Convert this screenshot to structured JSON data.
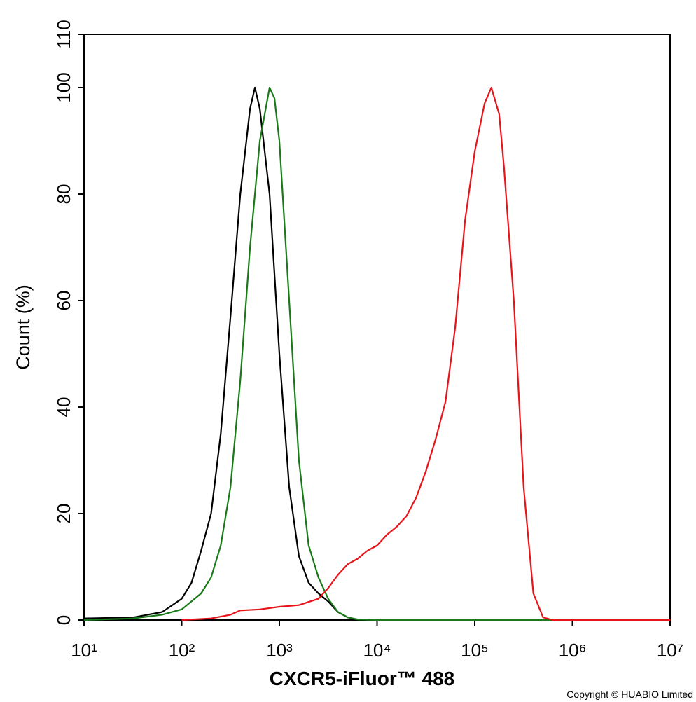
{
  "chart_data": {
    "type": "line",
    "xlabel": "CXCR5-iFluor™ 488",
    "ylabel": "Count  (%)",
    "annotation": "Copyright © HUABIO Limited",
    "xscale": "log",
    "xlim": [
      10,
      10000000
    ],
    "ylim": [
      0,
      110
    ],
    "xticks": [
      {
        "value": 10,
        "label": "10¹"
      },
      {
        "value": 100,
        "label": "10²"
      },
      {
        "value": 1000,
        "label": "10³"
      },
      {
        "value": 10000,
        "label": "10⁴"
      },
      {
        "value": 100000,
        "label": "10⁵"
      },
      {
        "value": 1000000,
        "label": "10⁶"
      },
      {
        "value": 10000000,
        "label": "10⁷"
      }
    ],
    "yticks": [
      0,
      20,
      40,
      60,
      80,
      100,
      110
    ],
    "series": [
      {
        "color": "#000000",
        "x": [
          10,
          32,
          63,
          100,
          126,
          158,
          200,
          251,
          316,
          398,
          501,
          562,
          631,
          794,
          1000,
          1259,
          1585,
          1995,
          2512,
          3162,
          3981,
          5012,
          6310,
          10000,
          10000000
        ],
        "values": [
          0.3,
          0.5,
          1.5,
          4,
          7,
          13,
          20,
          35,
          57,
          80,
          96,
          100,
          96,
          80,
          50,
          25,
          12,
          7,
          5,
          3.5,
          1.5,
          0.5,
          0.1,
          0,
          0
        ]
      },
      {
        "color": "#1a7a1a",
        "x": [
          10,
          32,
          63,
          100,
          158,
          200,
          251,
          316,
          398,
          501,
          631,
          794,
          891,
          1000,
          1259,
          1585,
          1995,
          2512,
          3162,
          3981,
          5012,
          6310,
          10000,
          10000000
        ],
        "values": [
          0,
          0.3,
          1,
          2,
          5,
          8,
          14,
          25,
          45,
          70,
          90,
          100,
          98,
          90,
          60,
          30,
          14,
          8,
          4,
          1.5,
          0.5,
          0.1,
          0,
          0
        ]
      },
      {
        "color": "#e8141a",
        "x": [
          100,
          200,
          316,
          398,
          631,
          1000,
          1585,
          2512,
          3162,
          3981,
          5012,
          6310,
          7943,
          10000,
          12589,
          15849,
          19953,
          25119,
          31623,
          39811,
          50119,
          63096,
          79433,
          100000,
          125893,
          147911,
          177828,
          199526,
          251189,
          316228,
          398107,
          501187,
          630957,
          10000000
        ],
        "values": [
          0,
          0.3,
          1,
          1.8,
          2,
          2.5,
          2.8,
          4,
          6,
          8.5,
          10.5,
          11.5,
          13,
          14,
          16,
          17.5,
          19.5,
          23,
          28,
          34,
          41,
          55,
          75,
          88,
          97,
          100,
          95,
          85,
          60,
          25,
          5,
          0.5,
          0,
          0
        ]
      }
    ]
  }
}
